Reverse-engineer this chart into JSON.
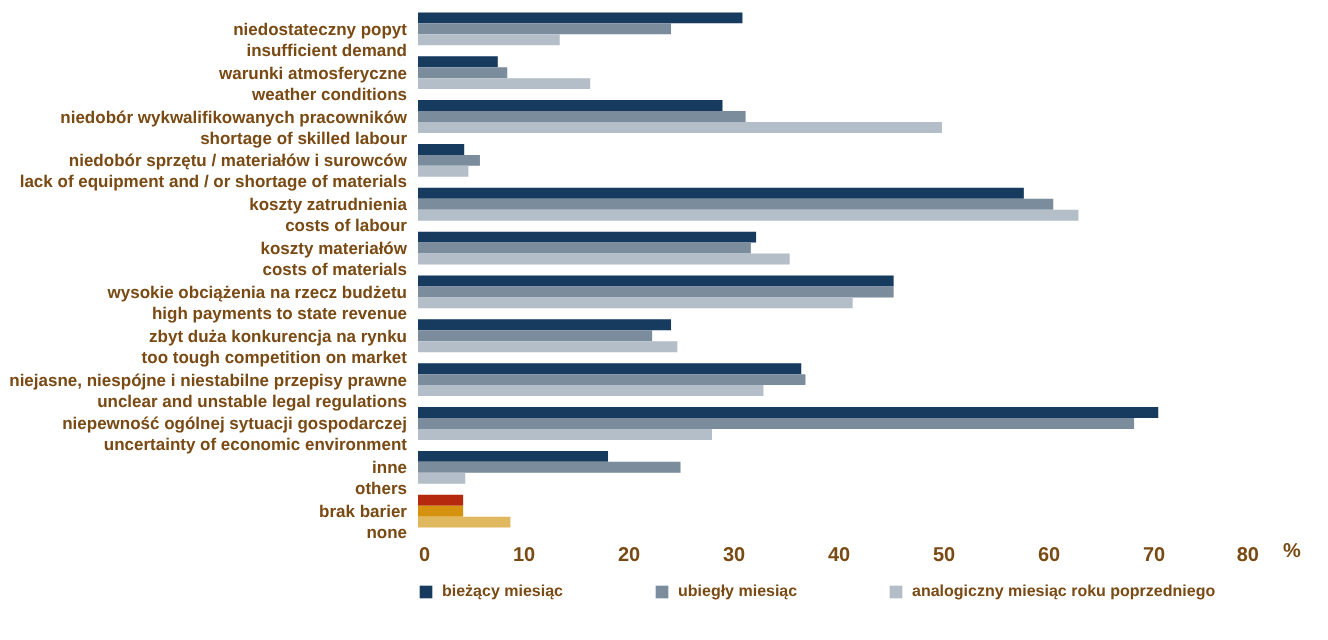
{
  "chart_data": {
    "type": "bar",
    "orientation": "horizontal",
    "xlabel": "%",
    "categories": [
      "niedostateczny popyt\ninsufficient demand",
      "warunki atmosferyczne\nweather conditions",
      "niedobór wykwalifikowanych pracowników\nshortage of skilled labour",
      "niedobór sprzętu / materiałów i surowców\nlack of equipment and / or shortage of materials",
      "koszty zatrudnienia\ncosts of labour",
      "koszty materiałów\ncosts of materials",
      "wysokie obciążenia na rzecz budżetu\nhigh payments to state revenue",
      "zbyt duża konkurencja na rynku\ntoo tough competition on market",
      "niejasne, niespójne i niestabilne przepisy prawne\nunclear and unstable legal regulations",
      "niepewność ogólnej sytuacji gospodarczej\nuncertainty of economic environment",
      "inne\nothers",
      "brak barier\nnone"
    ],
    "series": [
      {
        "name": "bieżący miesiąc",
        "color": "#173b5f",
        "colors": [
          "#173b5f",
          "#173b5f",
          "#173b5f",
          "#173b5f",
          "#173b5f",
          "#173b5f",
          "#173b5f",
          "#173b5f",
          "#173b5f",
          "#173b5f",
          "#173b5f",
          "#b5290f"
        ],
        "values": [
          30.9,
          7.6,
          29.0,
          4.4,
          57.7,
          32.2,
          45.3,
          24.1,
          36.5,
          70.5,
          18.1,
          4.3
        ]
      },
      {
        "name": "ubiegły miesiąc",
        "color": "#7b8c9c",
        "colors": [
          "#7b8c9c",
          "#7b8c9c",
          "#7b8c9c",
          "#7b8c9c",
          "#7b8c9c",
          "#7b8c9c",
          "#7b8c9c",
          "#7b8c9c",
          "#7b8c9c",
          "#7b8c9c",
          "#7b8c9c",
          "#d4920f"
        ],
        "values": [
          24.1,
          8.5,
          31.2,
          5.9,
          60.5,
          31.7,
          45.3,
          22.3,
          36.9,
          68.2,
          25.0,
          4.3
        ]
      },
      {
        "name": "analogiczny miesiąc roku poprzedniego",
        "color": "#b4bec8",
        "colors": [
          "#b4bec8",
          "#b4bec8",
          "#b4bec8",
          "#b4bec8",
          "#b4bec8",
          "#b4bec8",
          "#b4bec8",
          "#b4bec8",
          "#b4bec8",
          "#b4bec8",
          "#b4bec8",
          "#e0b860"
        ],
        "values": [
          13.5,
          16.4,
          49.9,
          4.8,
          62.9,
          35.4,
          41.4,
          24.7,
          32.9,
          28.0,
          4.5,
          8.8
        ]
      }
    ],
    "xlim": [
      0,
      80
    ],
    "xticks": [
      0,
      10,
      20,
      30,
      40,
      50,
      60,
      70,
      80
    ],
    "grid": false,
    "legend": "bottom"
  }
}
